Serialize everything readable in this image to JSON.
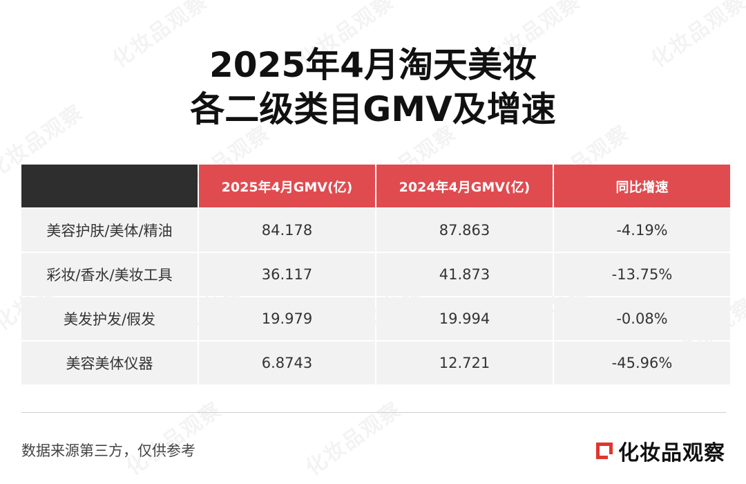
{
  "title": {
    "line1": "2025年4月淘天美妆",
    "line2": "各二级类目GMV及增速"
  },
  "table": {
    "headers": [
      "",
      "2025年4月GMV(亿)",
      "2024年4月GMV(亿)",
      "同比增速"
    ],
    "rows": [
      [
        "美容护肤/美体/精油",
        "84.178",
        "87.863",
        "-4.19%"
      ],
      [
        "彩妆/香水/美妆工具",
        "36.117",
        "41.873",
        "-13.75%"
      ],
      [
        "美发护发/假发",
        "19.979",
        "19.994",
        "-0.08%"
      ],
      [
        "美容美体仪器",
        "6.8743",
        "12.721",
        "-45.96%"
      ]
    ]
  },
  "footer": {
    "source": "数据来源第三方，仅供参考",
    "brand": "化妆品观察"
  },
  "watermark": "化妆品观察",
  "colors": {
    "header_red": "#e04b50",
    "header_dark": "#2e2e2e",
    "row_bg": "#f2f2f2",
    "brand_red": "#e0362f"
  },
  "icons": {
    "brand_logo": "logo-square-icon"
  }
}
